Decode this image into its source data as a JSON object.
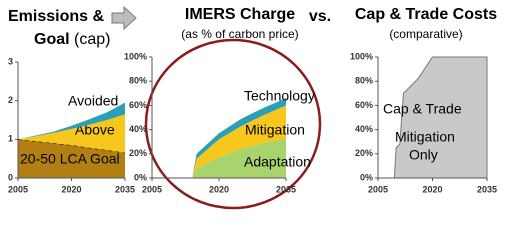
{
  "vs_label": "vs.",
  "chart_data": [
    {
      "type": "area",
      "stacked": true,
      "title": "Emissions &",
      "title_2": "Goal",
      "title_note": "(cap)",
      "x": [
        2005,
        2010,
        2015,
        2020,
        2025,
        2030,
        2035
      ],
      "series": [
        {
          "name": "20-50 LCA Goal",
          "color": "#b27f12",
          "line_style": "dashed",
          "values": [
            1.0,
            0.95,
            0.9,
            0.85,
            0.78,
            0.72,
            0.65
          ]
        },
        {
          "name": "Above",
          "color": "#f6c71c",
          "values": [
            0,
            0.13,
            0.27,
            0.42,
            0.6,
            0.78,
            1.0
          ]
        },
        {
          "name": "Avoided",
          "color": "#2b9fb8",
          "values": [
            0,
            0.02,
            0.03,
            0.08,
            0.14,
            0.2,
            0.3
          ]
        }
      ],
      "xlim": [
        2005,
        2035
      ],
      "xticks": [
        2005,
        2020,
        2035
      ],
      "ylim": [
        0,
        3
      ],
      "yticks": [
        0,
        1,
        2,
        3
      ]
    },
    {
      "type": "area",
      "stacked": true,
      "title": "IMERS Charge",
      "subtitle": "(as % of carbon price)",
      "x": [
        2014,
        2015,
        2020,
        2025,
        2030,
        2035
      ],
      "series": [
        {
          "name": "Adaptation",
          "color": "#a9d36c",
          "values": [
            0,
            8,
            17,
            24,
            29,
            33
          ]
        },
        {
          "name": "Mitigation",
          "color": "#f6c71c",
          "values": [
            0,
            8,
            15,
            19,
            23,
            27
          ]
        },
        {
          "name": "Technology",
          "color": "#2b9fb8",
          "values": [
            0,
            4,
            5,
            6,
            6,
            6
          ]
        }
      ],
      "xlim": [
        2005,
        2035
      ],
      "xticks": [
        2005,
        2020,
        2035
      ],
      "ylim": [
        0,
        100
      ],
      "yticks": [
        {
          "value": 0,
          "label": "0%"
        },
        {
          "value": 20,
          "label": "20%"
        },
        {
          "value": 40,
          "label": "40%"
        },
        {
          "value": 60,
          "label": "60%"
        },
        {
          "value": 80,
          "label": "80%"
        },
        {
          "value": 100,
          "label": "100%"
        }
      ]
    },
    {
      "type": "area",
      "stacked": false,
      "title": "Cap & Trade Costs",
      "subtitle": "(comparative)",
      "x": [
        2009.5,
        2010,
        2011,
        2012,
        2016,
        2020,
        2035
      ],
      "series": [
        {
          "name": "Cap & Trade",
          "color": "#c9c9c9",
          "values": [
            0,
            25,
            28,
            70,
            82,
            100,
            100
          ]
        }
      ],
      "annotation": [
        "Mitigation",
        "Only"
      ],
      "xlim": [
        2005,
        2035
      ],
      "xticks": [
        2005,
        2020,
        2035
      ],
      "ylim": [
        0,
        100
      ],
      "yticks": [
        {
          "value": 0,
          "label": "0%"
        },
        {
          "value": 20,
          "label": "20%"
        },
        {
          "value": 40,
          "label": "40%"
        },
        {
          "value": 60,
          "label": "60%"
        },
        {
          "value": 80,
          "label": "80%"
        },
        {
          "value": 100,
          "label": "100%"
        }
      ]
    }
  ]
}
